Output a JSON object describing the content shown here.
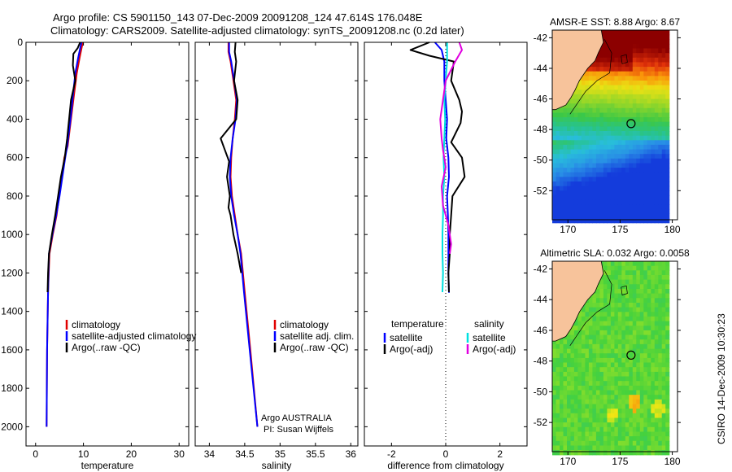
{
  "header": {
    "line1": "Argo profile: CS 5901150_143 07-Dec-2009 20091208_124 47.614S 176.048E",
    "line2": "Climatology: CARS2009. Satellite-adjusted climatology: synTS_20091208.nc (0.2d later)"
  },
  "credits": {
    "program": "Argo AUSTRALIA",
    "pi": "PI: Susan Wijffels"
  },
  "timestamp": "CSIRO 14-Dec-2009 10:30:23",
  "colors": {
    "climatology": "#e00000",
    "satellite": "#0000ff",
    "argo": "#000000",
    "salinity_satellite": "#00e0e0",
    "salinity_argo": "#e000e0",
    "land": "#f7c39b"
  },
  "chart_data": [
    {
      "type": "line",
      "id": "temperature",
      "xlabel": "temperature",
      "ylabel": "",
      "xlim": [
        -2,
        32
      ],
      "ylim": [
        0,
        2100
      ],
      "y_reversed": true,
      "xticks": [
        0,
        10,
        20,
        30
      ],
      "yticks": [
        0,
        200,
        400,
        600,
        800,
        1000,
        1200,
        1400,
        1600,
        1800,
        2000
      ],
      "legend": [
        "climatology",
        "satellite-adjusted climatology",
        "Argo(..raw -QC)"
      ],
      "legend_position": "lower-left",
      "series": [
        {
          "name": "climatology",
          "color": "#e00000",
          "x": [
            9.9,
            9.7,
            9.2,
            8.6,
            8.0,
            7.3,
            6.7,
            6.0,
            5.5,
            4.9,
            4.4,
            3.6,
            2.9,
            2.6,
            2.4,
            2.3
          ],
          "y": [
            0,
            20,
            80,
            160,
            280,
            420,
            540,
            600,
            700,
            800,
            900,
            1000,
            1100,
            1300,
            1600,
            2000
          ]
        },
        {
          "name": "satellite-adjusted climatology",
          "color": "#0000ff",
          "x": [
            9.6,
            9.4,
            8.9,
            8.3,
            7.8,
            7.2,
            6.6,
            6.2,
            5.6,
            5.0,
            4.3,
            3.5,
            2.8,
            2.6,
            2.4,
            2.3
          ],
          "y": [
            0,
            20,
            80,
            160,
            280,
            420,
            540,
            600,
            700,
            800,
            900,
            1000,
            1100,
            1300,
            1600,
            2000
          ]
        },
        {
          "name": "Argo(..raw -QC)",
          "color": "#000000",
          "x": [
            9.3,
            8.8,
            7.9,
            7.8,
            8.3,
            7.4,
            6.6,
            6.1,
            5.3,
            4.7,
            4.1,
            3.4,
            2.8,
            2.6,
            2.5
          ],
          "y": [
            0,
            30,
            60,
            120,
            200,
            300,
            500,
            600,
            700,
            800,
            900,
            1000,
            1100,
            1200,
            1300
          ]
        }
      ]
    },
    {
      "type": "line",
      "id": "salinity",
      "xlabel": "salinity",
      "ylabel": "",
      "xlim": [
        33.8,
        36.1
      ],
      "ylim": [
        0,
        2100
      ],
      "y_reversed": true,
      "xticks": [
        34,
        34.5,
        35,
        35.5,
        36
      ],
      "xtick_labels": [
        "34",
        "34.5",
        "35",
        "35.5",
        "36"
      ],
      "yticks": [
        0,
        200,
        400,
        600,
        800,
        1000,
        1200,
        1400,
        1600,
        1800,
        2000
      ],
      "legend": [
        "climatology",
        "satellite adj. clim.",
        "Argo(..raw -QC)"
      ],
      "legend_position": "lower-right",
      "series": [
        {
          "name": "climatology",
          "color": "#e00000",
          "x": [
            34.27,
            34.27,
            34.3,
            34.34,
            34.38,
            34.36,
            34.33,
            34.31,
            34.3,
            34.32,
            34.36,
            34.4,
            34.45,
            34.5,
            34.58,
            34.68
          ],
          "y": [
            0,
            50,
            100,
            200,
            300,
            400,
            500,
            600,
            700,
            800,
            900,
            1000,
            1100,
            1300,
            1600,
            2000
          ]
        },
        {
          "name": "satellite adj. clim.",
          "color": "#0000ff",
          "x": [
            34.28,
            34.28,
            34.31,
            34.35,
            34.39,
            34.37,
            34.33,
            34.3,
            34.29,
            34.31,
            34.35,
            34.4,
            34.44,
            34.49,
            34.57,
            34.68
          ],
          "y": [
            0,
            50,
            100,
            200,
            300,
            400,
            500,
            600,
            700,
            800,
            900,
            1000,
            1100,
            1300,
            1600,
            2000
          ]
        },
        {
          "name": "Argo(..raw -QC)",
          "color": "#000000",
          "x": [
            34.37,
            34.36,
            34.38,
            34.35,
            34.4,
            34.38,
            34.27,
            34.16,
            34.22,
            34.28,
            34.25,
            34.29,
            34.27,
            34.3,
            34.34,
            34.4,
            34.45
          ],
          "y": [
            0,
            50,
            100,
            200,
            300,
            400,
            450,
            500,
            560,
            620,
            700,
            800,
            860,
            900,
            1000,
            1100,
            1200
          ]
        }
      ]
    },
    {
      "type": "line",
      "id": "difference",
      "xlabel": "difference from climatology",
      "ylabel": "",
      "xlim": [
        -3,
        3
      ],
      "ylim": [
        0,
        2100
      ],
      "y_reversed": true,
      "xticks": [
        -2,
        0,
        2
      ],
      "yticks": [
        0,
        200,
        400,
        600,
        800,
        1000,
        1200,
        1400,
        1600,
        1800,
        2000
      ],
      "legend_groups": [
        {
          "title": "temperature",
          "items": [
            "satellite",
            "Argo(-adj)"
          ]
        },
        {
          "title": "salinity",
          "items": [
            "satellite",
            "Argo(-adj)"
          ]
        }
      ],
      "legend_position": "lower",
      "series": [
        {
          "name": "temperature satellite",
          "color": "#0000ff",
          "x": [
            -0.4,
            -0.15,
            -0.05,
            -0.05,
            0,
            0.05,
            0.02,
            0.1,
            0.12,
            0.05,
            0.08,
            0.1,
            0.1,
            0.1,
            0.12,
            0.1
          ],
          "y": [
            0,
            40,
            100,
            200,
            300,
            400,
            500,
            600,
            700,
            800,
            900,
            1000,
            1100,
            1200,
            1300,
            1300
          ]
        },
        {
          "name": "temperature Argo(-adj)",
          "color": "#000000",
          "x": [
            -0.6,
            -1.3,
            -0.6,
            0.3,
            0.2,
            0.5,
            0.6,
            0.55,
            0.2,
            0.6,
            0.7,
            0.25,
            0.2,
            0.15,
            0.15,
            0.1,
            0.12
          ],
          "y": [
            0,
            40,
            70,
            100,
            200,
            300,
            360,
            420,
            520,
            600,
            700,
            800,
            900,
            1000,
            1100,
            1200,
            1300
          ]
        },
        {
          "name": "salinity satellite",
          "color": "#00e0e0",
          "x": [
            0.05,
            0.05,
            0.0,
            -0.05,
            -0.02,
            -0.05,
            -0.08,
            -0.05,
            -0.1,
            -0.1,
            -0.12,
            -0.12,
            -0.1,
            -0.12
          ],
          "y": [
            0,
            100,
            200,
            300,
            400,
            500,
            600,
            700,
            800,
            900,
            1000,
            1100,
            1200,
            1300
          ]
        },
        {
          "name": "salinity Argo(-adj)",
          "color": "#e000e0",
          "x": [
            0.5,
            0.6,
            0.35,
            0.0,
            -0.2,
            -0.15,
            -0.1,
            0.0,
            -0.15,
            -0.1,
            0.1,
            0.2,
            0.15
          ],
          "y": [
            0,
            40,
            100,
            200,
            400,
            500,
            560,
            650,
            750,
            850,
            950,
            1050,
            1100
          ]
        }
      ]
    },
    {
      "type": "heatmap",
      "id": "sst_map",
      "title": "AMSR-E SST: 8.88 Argo: 8.67",
      "xlim": [
        168.5,
        180.5
      ],
      "ylim": [
        -53.9,
        -41.5
      ],
      "xticks": [
        170,
        175,
        180
      ],
      "yticks": [
        -42,
        -44,
        -46,
        -48,
        -50,
        -52
      ],
      "float_position": [
        176.048,
        -47.614
      ]
    },
    {
      "type": "heatmap",
      "id": "sla_map",
      "title": "Altimetric SLA: 0.032 Argo: 0.0058",
      "xlim": [
        168.5,
        180.5
      ],
      "ylim": [
        -53.9,
        -41.5
      ],
      "xticks": [
        170,
        175,
        180
      ],
      "yticks": [
        -42,
        -44,
        -46,
        -48,
        -50,
        -52
      ],
      "float_position": [
        176.048,
        -47.614
      ]
    }
  ]
}
